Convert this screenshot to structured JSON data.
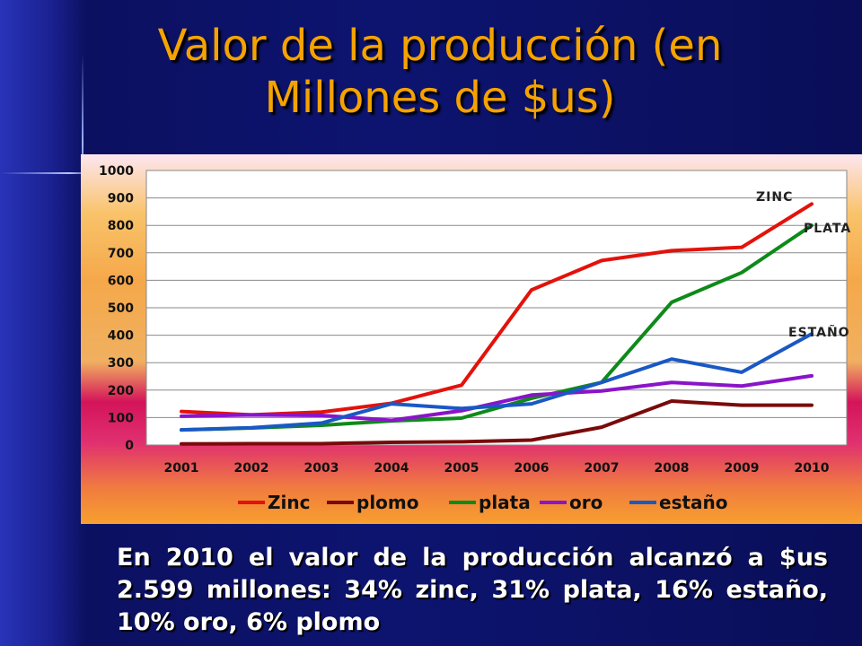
{
  "slide": {
    "title_line1": "Valor de la producción (en",
    "title_line2": "Millones de $us)",
    "caption": "En 2010 el valor de la producción alcanzó a $us 2.599 millones: 34% zinc, 31% plata, 16% estaño, 10% oro, 6% plomo"
  },
  "chart_data": {
    "type": "line",
    "title": "",
    "xlabel": "",
    "ylabel": "",
    "x": [
      "2001",
      "2002",
      "2003",
      "2004",
      "2005",
      "2006",
      "2007",
      "2008",
      "2009",
      "2010"
    ],
    "ylim": [
      0,
      1000
    ],
    "yticks": [
      "0",
      "100",
      "200",
      "300",
      "400",
      "500",
      "600",
      "700",
      "800",
      "900",
      "1000"
    ],
    "grid": true,
    "legend": "bottom",
    "series": [
      {
        "name": "Zinc",
        "color": "#e3120b",
        "values": [
          122,
          110,
          120,
          152,
          218,
          565,
          672,
          708,
          720,
          878
        ]
      },
      {
        "name": "plomo",
        "color": "#7a0a0a",
        "values": [
          4,
          5,
          5,
          10,
          12,
          18,
          65,
          160,
          145,
          145
        ]
      },
      {
        "name": "plata",
        "color": "#0e8a1a",
        "values": [
          55,
          62,
          72,
          88,
          98,
          170,
          228,
          520,
          628,
          800
        ]
      },
      {
        "name": "oro",
        "color": "#8a14c8",
        "values": [
          105,
          110,
          108,
          90,
          125,
          182,
          197,
          228,
          215,
          252
        ]
      },
      {
        "name": "estaño",
        "color": "#1a58c4",
        "values": [
          55,
          63,
          80,
          150,
          133,
          150,
          228,
          313,
          265,
          405
        ]
      }
    ],
    "annotations": [
      "ZINC",
      "PLATA",
      "ESTAÑO"
    ]
  }
}
